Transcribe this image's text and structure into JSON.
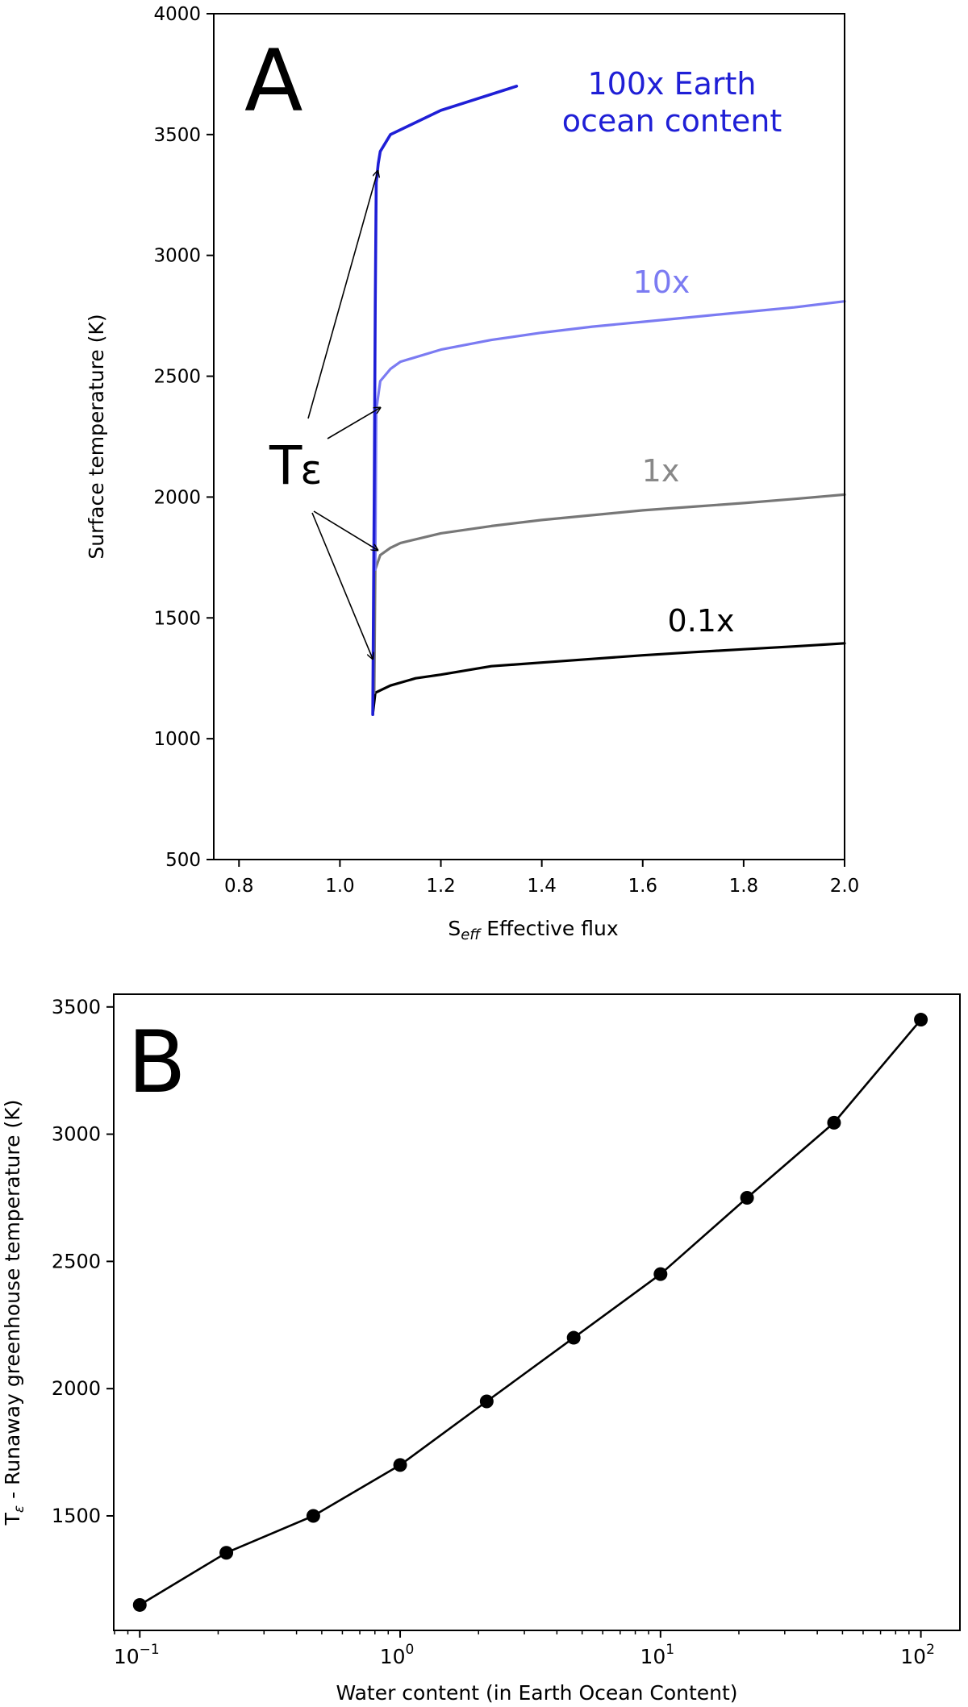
{
  "chart_data": [
    {
      "panel": "A",
      "type": "line",
      "title": "",
      "xlabel_main": "S",
      "xlabel_sub": "eff",
      "xlabel_rest": " Effective flux",
      "ylabel": "Surface temperature (K)",
      "xlim": [
        0.75,
        2.0
      ],
      "ylim": [
        500,
        4000
      ],
      "xticks": [
        "0.8",
        "1.0",
        "1.2",
        "1.4",
        "1.6",
        "1.8",
        "2.0"
      ],
      "xtick_values": [
        0.8,
        1.0,
        1.2,
        1.4,
        1.6,
        1.8,
        2.0
      ],
      "yticks": [
        "500",
        "1000",
        "1500",
        "2000",
        "2500",
        "3000",
        "3500",
        "4000"
      ],
      "ytick_values": [
        500,
        1000,
        1500,
        2000,
        2500,
        3000,
        3500,
        4000
      ],
      "series": [
        {
          "name": "0.1x",
          "label": "0.1x",
          "color": "#000000",
          "label_color": "#000000",
          "x": [
            1.065,
            1.07,
            1.09,
            1.1,
            1.15,
            1.2,
            1.3,
            1.4,
            1.5,
            1.6,
            1.7,
            1.8,
            1.9,
            2.0
          ],
          "y": [
            1100,
            1190,
            1210,
            1220,
            1250,
            1265,
            1300,
            1315,
            1330,
            1345,
            1358,
            1370,
            1382,
            1395
          ]
        },
        {
          "name": "1x",
          "label": "1x",
          "color": "#777777",
          "label_color": "#888888",
          "x": [
            1.068,
            1.07,
            1.08,
            1.1,
            1.12,
            1.2,
            1.3,
            1.4,
            1.5,
            1.6,
            1.7,
            1.8,
            1.9,
            2.0
          ],
          "y": [
            1190,
            1700,
            1760,
            1790,
            1810,
            1850,
            1880,
            1905,
            1925,
            1945,
            1960,
            1975,
            1992,
            2010
          ]
        },
        {
          "name": "10x",
          "label": "10x",
          "color": "#7b7bf2",
          "label_color": "#7b7bf2",
          "x": [
            1.07,
            1.072,
            1.08,
            1.1,
            1.12,
            1.2,
            1.3,
            1.4,
            1.5,
            1.6,
            1.7,
            1.8,
            1.9,
            2.0
          ],
          "y": [
            1700,
            2360,
            2480,
            2530,
            2560,
            2610,
            2650,
            2680,
            2705,
            2725,
            2745,
            2765,
            2785,
            2810
          ]
        },
        {
          "name": "100x",
          "label": [
            "100x Earth",
            "ocean content"
          ],
          "color": "#1f1fd6",
          "label_color": "#1f1fd6",
          "x": [
            1.065,
            1.068,
            1.07,
            1.072,
            1.076,
            1.08,
            1.1,
            1.2,
            1.35
          ],
          "y": [
            1100,
            2000,
            2800,
            3300,
            3380,
            3430,
            3500,
            3600,
            3700
          ]
        }
      ],
      "annotations": {
        "panel_letter": "A",
        "te_main": "T",
        "te_sub": "ε",
        "arrow_targets": [
          [
            1.075,
            3350
          ],
          [
            1.08,
            2370
          ],
          [
            1.075,
            1780
          ],
          [
            1.065,
            1330
          ]
        ]
      }
    },
    {
      "panel": "B",
      "type": "line",
      "title": "",
      "xscale": "log",
      "xlabel": "Water content (in Earth Ocean Content)",
      "ylabel_main": "T",
      "ylabel_sub": "ε",
      "ylabel_rest": " - Runaway greenhouse temperature (K)",
      "xlim_log10": [
        -1.1,
        2.15
      ],
      "ylim": [
        1050,
        3550
      ],
      "xtick_values_log10": [
        -1,
        0,
        1,
        2
      ],
      "xtick_base": "10",
      "xtick_exponents": [
        "−1",
        "0",
        "1",
        "2"
      ],
      "yticks": [
        "1500",
        "2000",
        "2500",
        "3000",
        "3500"
      ],
      "ytick_values": [
        1500,
        2000,
        2500,
        3000,
        3500
      ],
      "series": [
        {
          "name": "Tε",
          "color": "#000000",
          "marker": "circle",
          "x": [
            0.1,
            0.215,
            0.464,
            1.0,
            2.15,
            4.64,
            10.0,
            21.5,
            46.4,
            100.0
          ],
          "y": [
            1150,
            1355,
            1500,
            1700,
            1950,
            2200,
            2450,
            2750,
            3045,
            3450
          ]
        }
      ],
      "annotations": {
        "panel_letter": "B"
      }
    }
  ]
}
